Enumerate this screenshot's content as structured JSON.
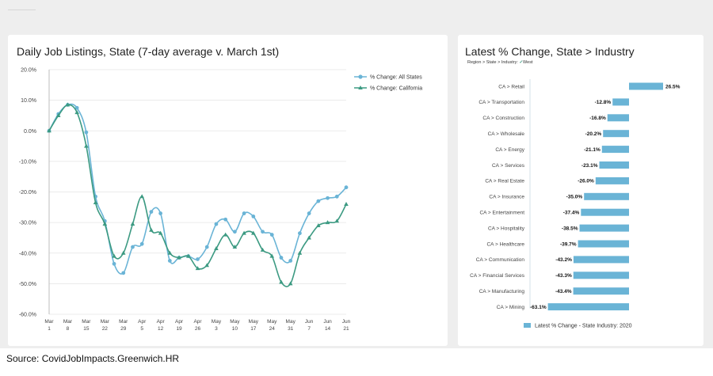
{
  "footer": {
    "source": "Source:  CovidJobImpacts.Greenwich.HR"
  },
  "left_panel": {
    "title": "Daily Job Listings, State (7-day average v. March 1st)"
  },
  "right_panel": {
    "title": "Latest % Change, State > Industry",
    "breadcrumb": "Region > State > Industry:",
    "breadcrumb_check": "✓",
    "breadcrumb_value": "West"
  },
  "colors": {
    "all_states": "#6ab4d6",
    "california": "#3c9a82",
    "bar": "#6ab4d6"
  },
  "chart_data": [
    {
      "type": "line",
      "title": "Daily Job Listings, State (7-day average v. March 1st)",
      "xlabel": "",
      "ylabel": "",
      "ylim": [
        -60,
        20
      ],
      "yticks": [
        20,
        10,
        0,
        -10,
        -20,
        -30,
        -40,
        -50,
        -60
      ],
      "ytick_labels": [
        "20.0%",
        "10.0%",
        "0.0%",
        "-10.0%",
        "-20.0%",
        "-30.0%",
        "-40.0%",
        "-50.0%",
        "-60.0%"
      ],
      "xticks": [
        {
          "month": "Mar",
          "day": "1",
          "index": 0
        },
        {
          "month": "Mar",
          "day": "8",
          "index": 1
        },
        {
          "month": "Mar",
          "day": "15",
          "index": 2
        },
        {
          "month": "Mar",
          "day": "22",
          "index": 3
        },
        {
          "month": "Mar",
          "day": "29",
          "index": 4
        },
        {
          "month": "Apr",
          "day": "5",
          "index": 5
        },
        {
          "month": "Apr",
          "day": "12",
          "index": 6
        },
        {
          "month": "Apr",
          "day": "19",
          "index": 7
        },
        {
          "month": "Apr",
          "day": "26",
          "index": 8
        },
        {
          "month": "May",
          "day": "3",
          "index": 9
        },
        {
          "month": "May",
          "day": "10",
          "index": 10
        },
        {
          "month": "May",
          "day": "17",
          "index": 11
        },
        {
          "month": "May",
          "day": "24",
          "index": 12
        },
        {
          "month": "May",
          "day": "31",
          "index": 13
        },
        {
          "month": "Jun",
          "day": "7",
          "index": 14
        },
        {
          "month": "Jun",
          "day": "14",
          "index": 15
        },
        {
          "month": "Jun",
          "day": "21",
          "index": 16
        }
      ],
      "grid": true,
      "legend": "top-right",
      "series": [
        {
          "name": "% Change: All States",
          "marker": "circle",
          "color": "#6ab4d6",
          "points": [
            [
              0,
              0.0
            ],
            [
              0.5,
              5.5
            ],
            [
              1.0,
              8.5
            ],
            [
              1.5,
              7.5
            ],
            [
              2.0,
              -0.5
            ],
            [
              2.5,
              -21.5
            ],
            [
              3.0,
              -29.5
            ],
            [
              3.5,
              -43.5
            ],
            [
              4.0,
              -46.5
            ],
            [
              4.5,
              -38.0
            ],
            [
              5.0,
              -37.0
            ],
            [
              5.5,
              -26.5
            ],
            [
              6.0,
              -27.0
            ],
            [
              6.5,
              -42.5
            ],
            [
              7.0,
              -41.5
            ],
            [
              7.5,
              -41.0
            ],
            [
              8.0,
              -42.0
            ],
            [
              8.5,
              -38.0
            ],
            [
              9.0,
              -30.5
            ],
            [
              9.5,
              -29.0
            ],
            [
              10.0,
              -33.0
            ],
            [
              10.5,
              -27.0
            ],
            [
              11.0,
              -28.0
            ],
            [
              11.5,
              -33.0
            ],
            [
              12.0,
              -34.0
            ],
            [
              12.5,
              -41.5
            ],
            [
              13.0,
              -42.5
            ],
            [
              13.5,
              -33.5
            ],
            [
              14.0,
              -27.0
            ],
            [
              14.5,
              -23.0
            ],
            [
              15.0,
              -22.0
            ],
            [
              15.5,
              -21.5
            ],
            [
              16.0,
              -18.5
            ]
          ]
        },
        {
          "name": "% Change: California",
          "marker": "triangle",
          "color": "#3c9a82",
          "points": [
            [
              0,
              0.0
            ],
            [
              0.5,
              5.0
            ],
            [
              1.0,
              8.5
            ],
            [
              1.5,
              6.0
            ],
            [
              2.0,
              -5.0
            ],
            [
              2.5,
              -23.5
            ],
            [
              3.0,
              -30.5
            ],
            [
              3.5,
              -41.0
            ],
            [
              4.0,
              -40.0
            ],
            [
              4.5,
              -30.5
            ],
            [
              5.0,
              -21.5
            ],
            [
              5.5,
              -32.5
            ],
            [
              6.0,
              -33.5
            ],
            [
              6.5,
              -40.0
            ],
            [
              7.0,
              -41.5
            ],
            [
              7.5,
              -41.0
            ],
            [
              8.0,
              -45.0
            ],
            [
              8.5,
              -44.0
            ],
            [
              9.0,
              -38.5
            ],
            [
              9.5,
              -34.0
            ],
            [
              10.0,
              -38.0
            ],
            [
              10.5,
              -33.5
            ],
            [
              11.0,
              -33.5
            ],
            [
              11.5,
              -39.0
            ],
            [
              12.0,
              -41.0
            ],
            [
              12.5,
              -49.5
            ],
            [
              13.0,
              -50.0
            ],
            [
              13.5,
              -40.0
            ],
            [
              14.0,
              -35.0
            ],
            [
              14.5,
              -31.0
            ],
            [
              15.0,
              -30.0
            ],
            [
              15.5,
              -29.5
            ],
            [
              16.0,
              -24.0
            ]
          ]
        }
      ]
    },
    {
      "type": "bar",
      "orientation": "horizontal",
      "title": "Latest % Change, State > Industry",
      "xlim": [
        -63.1,
        26.5
      ],
      "legend": "bottom",
      "series": [
        {
          "name": "Latest % Change - State Industry: 2020",
          "color": "#6ab4d6"
        }
      ],
      "categories": [
        "CA > Retail",
        "CA > Transportation",
        "CA > Construction",
        "CA > Wholesale",
        "CA > Energy",
        "CA > Services",
        "CA > Real Estate",
        "CA > Insurance",
        "CA > Entertainment",
        "CA > Hospitality",
        "CA > Healthcare",
        "CA > Communication",
        "CA > Financial Services",
        "CA > Manufacturing",
        "CA > Mining"
      ],
      "values": [
        26.5,
        -12.8,
        -16.8,
        -20.2,
        -21.1,
        -23.1,
        -26.0,
        -35.0,
        -37.4,
        -38.5,
        -39.7,
        -43.2,
        -43.3,
        -43.4,
        -63.1
      ],
      "data_labels": [
        "26.5%",
        "-12.8%",
        "-16.8%",
        "-20.2%",
        "-21.1%",
        "-23.1%",
        "-26.0%",
        "-35.0%",
        "-37.4%",
        "-38.5%",
        "-39.7%",
        "-43.2%",
        "-43.3%",
        "-43.4%",
        "-63.1%"
      ]
    }
  ]
}
